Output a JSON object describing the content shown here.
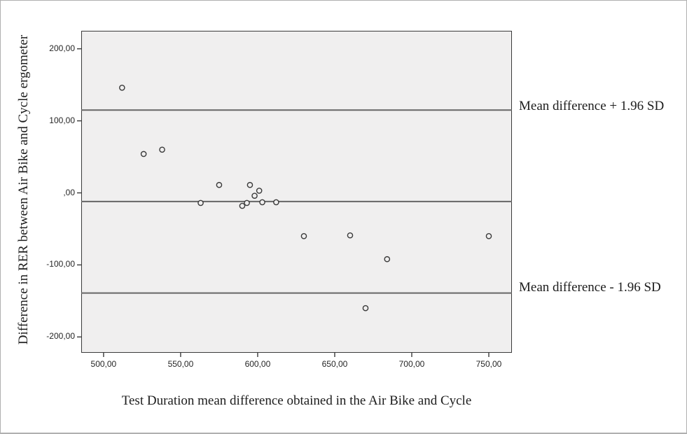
{
  "figure": {
    "background_color": "#ffffff",
    "frame_border_color": "#b0b0b0",
    "plot_background_color": "#f0efef",
    "plot_border_color": "#3a3a3a",
    "tick_color": "#2b2b2b",
    "text_color": "#1c1c1c"
  },
  "chart_data": {
    "type": "scatter",
    "title": "",
    "xlabel": "Test Duration mean difference obtained in the Air Bike and Cycle",
    "ylabel": "Difference in RER between Air Bike and Cycle ergometer",
    "xlim": [
      485.5,
      765
    ],
    "ylim": [
      -222,
      225
    ],
    "grid": false,
    "legend_position": "none",
    "x_ticks": [
      {
        "value": 500,
        "label": "500,00"
      },
      {
        "value": 550,
        "label": "550,00"
      },
      {
        "value": 600,
        "label": "600,00"
      },
      {
        "value": 650,
        "label": "650,00"
      },
      {
        "value": 700,
        "label": "700,00"
      },
      {
        "value": 750,
        "label": "750,00"
      }
    ],
    "y_ticks": [
      {
        "value": 200,
        "label": "200,00"
      },
      {
        "value": 100,
        "label": "100,00"
      },
      {
        "value": 0,
        "label": ",00"
      },
      {
        "value": -100,
        "label": "-100,00"
      },
      {
        "value": -200,
        "label": "-200,00"
      }
    ],
    "reference_lines": [
      {
        "value": 115,
        "label": "Mean difference + 1.96 SD"
      },
      {
        "value": -12,
        "label": ""
      },
      {
        "value": -139,
        "label": "Mean difference - 1.96 SD"
      }
    ],
    "points": [
      [
        512,
        146
      ],
      [
        526,
        54
      ],
      [
        538,
        60
      ],
      [
        563,
        -14
      ],
      [
        575,
        11
      ],
      [
        590,
        -18
      ],
      [
        593,
        -14
      ],
      [
        595,
        11
      ],
      [
        598,
        -4
      ],
      [
        601,
        3
      ],
      [
        603,
        -13
      ],
      [
        612,
        -13
      ],
      [
        630,
        -60
      ],
      [
        660,
        -59
      ],
      [
        670,
        -160
      ],
      [
        684,
        -92
      ],
      [
        750,
        -60
      ]
    ],
    "marker": {
      "shape": "circle-outline",
      "stroke_color": "#3a3a3a",
      "fill_color": "#f0efef"
    },
    "reference_line_color": "#666666"
  }
}
